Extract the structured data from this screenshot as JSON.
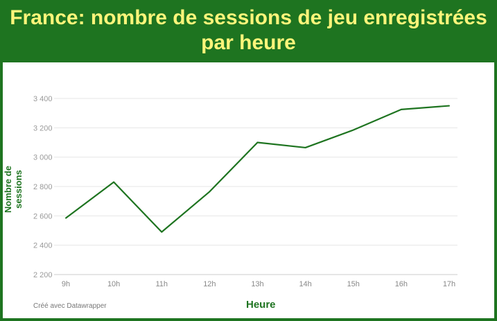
{
  "title": "France: nombre de sessions de jeu enregistrées par heure",
  "credit": "Créé avec Datawrapper",
  "colors": {
    "background": "#1e7420",
    "title": "#fff57a",
    "line": "#1e7420"
  },
  "chart_data": {
    "type": "line",
    "title": "France: nombre de sessions de jeu enregistrées par heure",
    "xlabel": "Heure",
    "ylabel": "Nombre de sessions",
    "categories": [
      "9h",
      "10h",
      "11h",
      "12h",
      "13h",
      "14h",
      "15h",
      "16h",
      "17h"
    ],
    "values": [
      2585,
      2830,
      2490,
      2765,
      3100,
      3065,
      3185,
      3325,
      3350
    ],
    "ylim": [
      2200,
      3400
    ],
    "yticks": [
      2200,
      2400,
      2600,
      2800,
      3000,
      3200,
      3400
    ],
    "ytick_labels": [
      "2 200",
      "2 400",
      "2 600",
      "2 800",
      "3 000",
      "3 200",
      "3 400"
    ],
    "grid": true
  }
}
